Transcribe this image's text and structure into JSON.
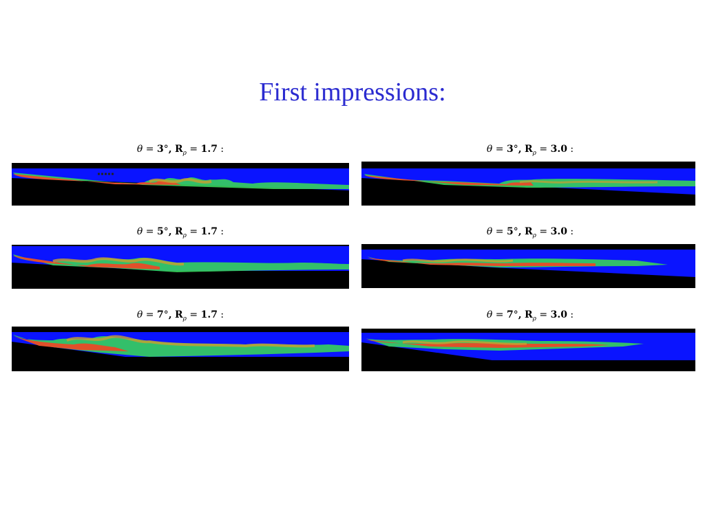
{
  "slide": {
    "title": "First impressions:"
  },
  "panels": [
    {
      "theta_symbol": "θ",
      "eq": "=",
      "angle": "3",
      "deg": "°",
      "comma": ",",
      "R": "R",
      "R_sub": "ρ",
      "R_value": "1.7",
      "colon": ":",
      "theta_deg": 3,
      "R_rho": 1.7
    },
    {
      "theta_symbol": "θ",
      "eq": "=",
      "angle": "3",
      "deg": "°",
      "comma": ",",
      "R": "R",
      "R_sub": "ρ",
      "R_value": "3.0",
      "colon": ":",
      "theta_deg": 3,
      "R_rho": 3.0
    },
    {
      "theta_symbol": "θ",
      "eq": "=",
      "angle": "5",
      "deg": "°",
      "comma": ",",
      "R": "R",
      "R_sub": "ρ",
      "R_value": "1.7",
      "colon": ":",
      "theta_deg": 5,
      "R_rho": 1.7
    },
    {
      "theta_symbol": "θ",
      "eq": "=",
      "angle": "5",
      "deg": "°",
      "comma": ",",
      "R": "R",
      "R_sub": "ρ",
      "R_value": "3.0",
      "colon": ":",
      "theta_deg": 5,
      "R_rho": 3.0
    },
    {
      "theta_symbol": "θ",
      "eq": "=",
      "angle": "7",
      "deg": "°",
      "comma": ",",
      "R": "R",
      "R_sub": "ρ",
      "R_value": "1.7",
      "colon": ":",
      "theta_deg": 7,
      "R_rho": 1.7
    },
    {
      "theta_symbol": "θ",
      "eq": "=",
      "angle": "7",
      "deg": "°",
      "comma": ",",
      "R": "R",
      "R_sub": "ρ",
      "R_value": "3.0",
      "colon": ":",
      "theta_deg": 7,
      "R_rho": 3.0
    }
  ],
  "colors": {
    "title": "#2b2bd0",
    "fluid": "#0a14ff",
    "ground": "#000000",
    "current_outer": "#37d25a",
    "current_core": "#e0502a",
    "current_mid": "#c8a030"
  }
}
